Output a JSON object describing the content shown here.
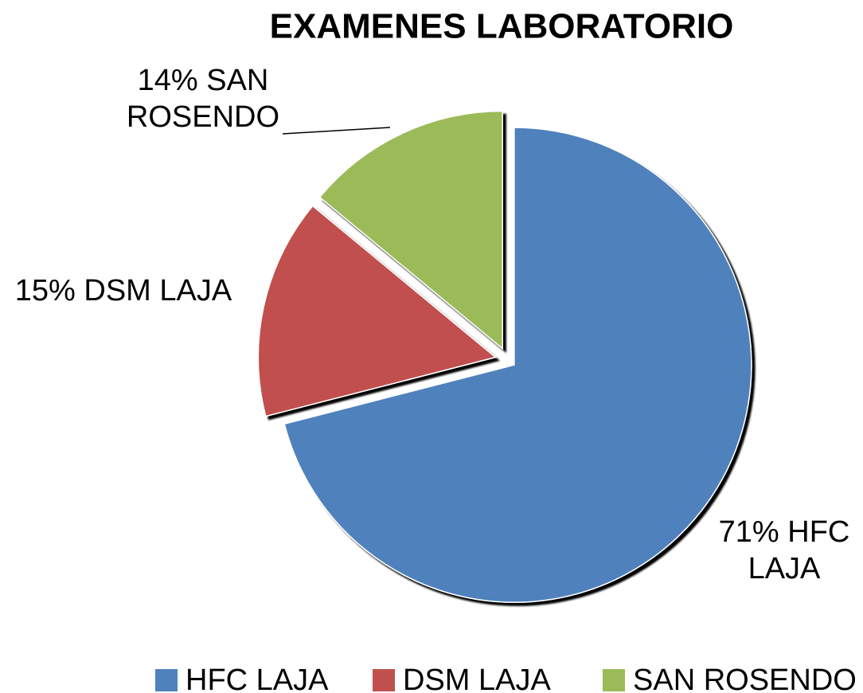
{
  "chart_data": {
    "type": "pie",
    "title": "EXAMENES LABORATORIO",
    "categories": [
      "HFC LAJA",
      "DSM LAJA",
      "SAN ROSENDO"
    ],
    "values": [
      71,
      15,
      14
    ],
    "value_labels": [
      "71% HFC LAJA",
      "15% DSM LAJA",
      "14% SAN ROSENDO"
    ],
    "colors": [
      "#4f81bd",
      "#c0504d",
      "#9bbb59"
    ],
    "legend": "bottom"
  }
}
